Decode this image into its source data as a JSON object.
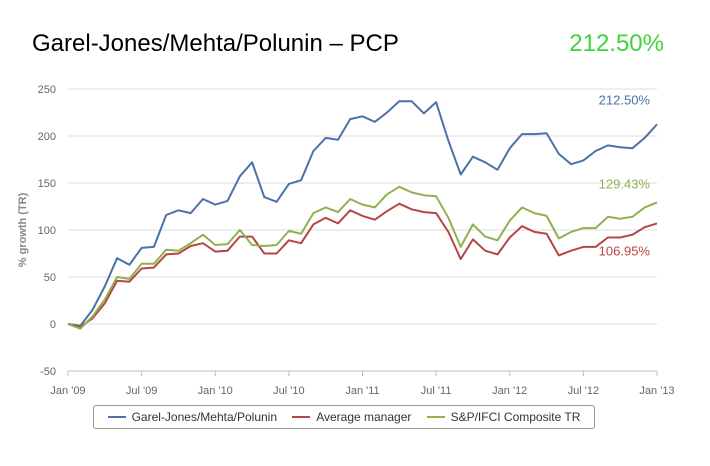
{
  "header": {
    "title": "Garel-Jones/Mehta/Polunin – PCP",
    "value": "212.50%",
    "value_color": "#3fd43f"
  },
  "chart_data": {
    "type": "line",
    "title": "",
    "xlabel": "",
    "ylabel": "% growth (TR)",
    "ylim": [
      -50,
      250
    ],
    "yticks": [
      -50,
      0,
      50,
      100,
      150,
      200,
      250
    ],
    "xticks": [
      "Jan '09",
      "Jul '09",
      "Jan '10",
      "Jul '10",
      "Jan '11",
      "Jul '11",
      "Jan '12",
      "Jul '12",
      "Jan '13"
    ],
    "grid": true,
    "legend_position": "bottom",
    "series": [
      {
        "name": "Garel-Jones/Mehta/Polunin",
        "color": "#4a72a8",
        "end_label": "212.50%",
        "values": [
          0,
          -2,
          15,
          40,
          70,
          63,
          81,
          82,
          116,
          121,
          118,
          133,
          127,
          131,
          157,
          172,
          135,
          130,
          149,
          153,
          184,
          198,
          196,
          218,
          221,
          215,
          225,
          237,
          237,
          224,
          236,
          195,
          159,
          178,
          172,
          164,
          187,
          202,
          202,
          203,
          181,
          170,
          174,
          184,
          190,
          188,
          187,
          198,
          212.5
        ]
      },
      {
        "name": "Average manager",
        "color": "#b84545",
        "end_label": "106.95%",
        "values": [
          0,
          -3,
          6,
          22,
          46,
          45,
          59,
          60,
          74,
          75,
          83,
          86,
          77,
          78,
          93,
          93,
          75,
          75,
          89,
          86,
          106,
          113,
          107,
          121,
          115,
          111,
          120,
          128,
          122,
          119,
          118,
          98,
          69,
          90,
          78,
          74,
          92,
          104,
          98,
          96,
          73,
          78,
          82,
          82,
          92,
          92,
          95,
          103,
          107
        ]
      },
      {
        "name": "S&P/IFCI Composite TR",
        "color": "#8fb150",
        "end_label": "129.43%",
        "values": [
          0,
          -5,
          8,
          26,
          50,
          48,
          64,
          64,
          79,
          78,
          86,
          95,
          84,
          85,
          100,
          84,
          83,
          84,
          99,
          96,
          118,
          124,
          119,
          133,
          127,
          124,
          138,
          146,
          140,
          137,
          136,
          113,
          82,
          106,
          93,
          89,
          110,
          124,
          118,
          115,
          91,
          98,
          102,
          102,
          114,
          112,
          114,
          124,
          129.4
        ]
      }
    ]
  }
}
